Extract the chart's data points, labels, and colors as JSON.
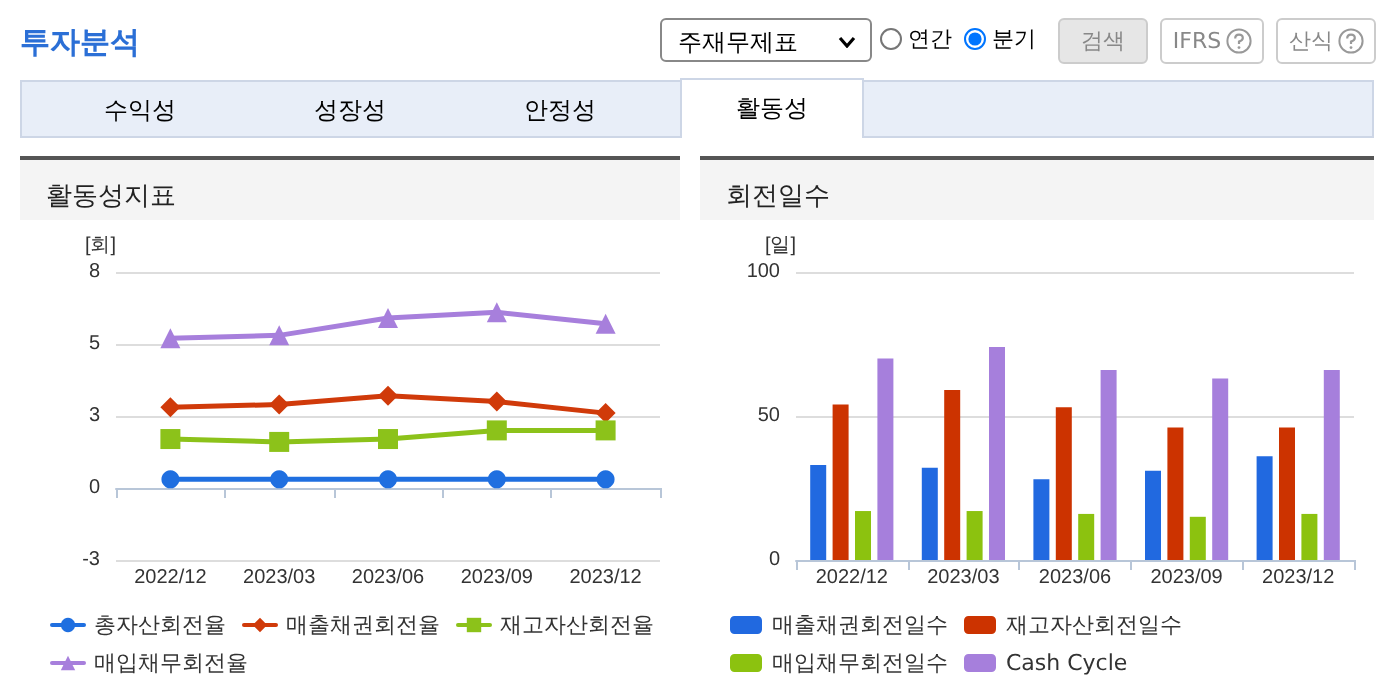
{
  "chart_data": [
    {
      "type": "other",
      "title": "투자분석",
      "annotations": [
        "주재무제표",
        "연간",
        "분기",
        "검색",
        "IFRS",
        "산식",
        "수익성",
        "성장성",
        "안정성",
        "활동성"
      ]
    },
    {
      "type": "line",
      "title": "활동성지표",
      "ylabel": "[회]",
      "categories": [
        "2022/12",
        "2023/03",
        "2023/06",
        "2023/09",
        "2023/12"
      ],
      "ylim": [
        -2.5,
        7.5
      ],
      "yticks": [
        {
          "value": -2.5,
          "label": "-3"
        },
        0,
        {
          "value": 2.5,
          "label": "3"
        },
        5,
        {
          "value": 7.5,
          "label": "8"
        }
      ],
      "grid": "y",
      "legend": "bottom",
      "line_style": "solid",
      "series": [
        {
          "name": "총자산회전율",
          "color": "#1f6fe0",
          "marker": "circle",
          "values": [
            0.3,
            0.3,
            0.3,
            0.3,
            0.3
          ]
        },
        {
          "name": "매출채권회전율",
          "color": "#d03a0a",
          "marker": "diamond",
          "values": [
            2.8,
            2.9,
            3.2,
            3.0,
            2.6
          ]
        },
        {
          "name": "재고자산회전율",
          "color": "#8cc21a",
          "marker": "square",
          "values": [
            1.7,
            1.6,
            1.7,
            2.0,
            2.0
          ]
        },
        {
          "name": "매입채무회전율",
          "color": "#a77fdc",
          "marker": "triangle",
          "values": [
            5.2,
            5.3,
            5.9,
            6.1,
            5.7
          ]
        }
      ]
    },
    {
      "type": "bar",
      "title": "회전일수",
      "ylabel": "[일]",
      "categories": [
        "2022/12",
        "2023/03",
        "2023/06",
        "2023/09",
        "2023/12"
      ],
      "ylim": [
        0,
        100
      ],
      "yticks": [
        0,
        50,
        100
      ],
      "grid": "y",
      "legend": "bottom",
      "series": [
        {
          "name": "매출채권회전일수",
          "color": "#2169e0",
          "values": [
            33,
            32,
            28,
            31,
            36
          ]
        },
        {
          "name": "재고자산회전일수",
          "color": "#cc3300",
          "values": [
            54,
            59,
            53,
            46,
            46
          ]
        },
        {
          "name": "매입채무회전일수",
          "color": "#8cc20f",
          "values": [
            17,
            17,
            16,
            15,
            16
          ]
        },
        {
          "name": "Cash Cycle",
          "color": "#a67fdc",
          "values": [
            70,
            74,
            66,
            63,
            66
          ]
        }
      ]
    }
  ]
}
